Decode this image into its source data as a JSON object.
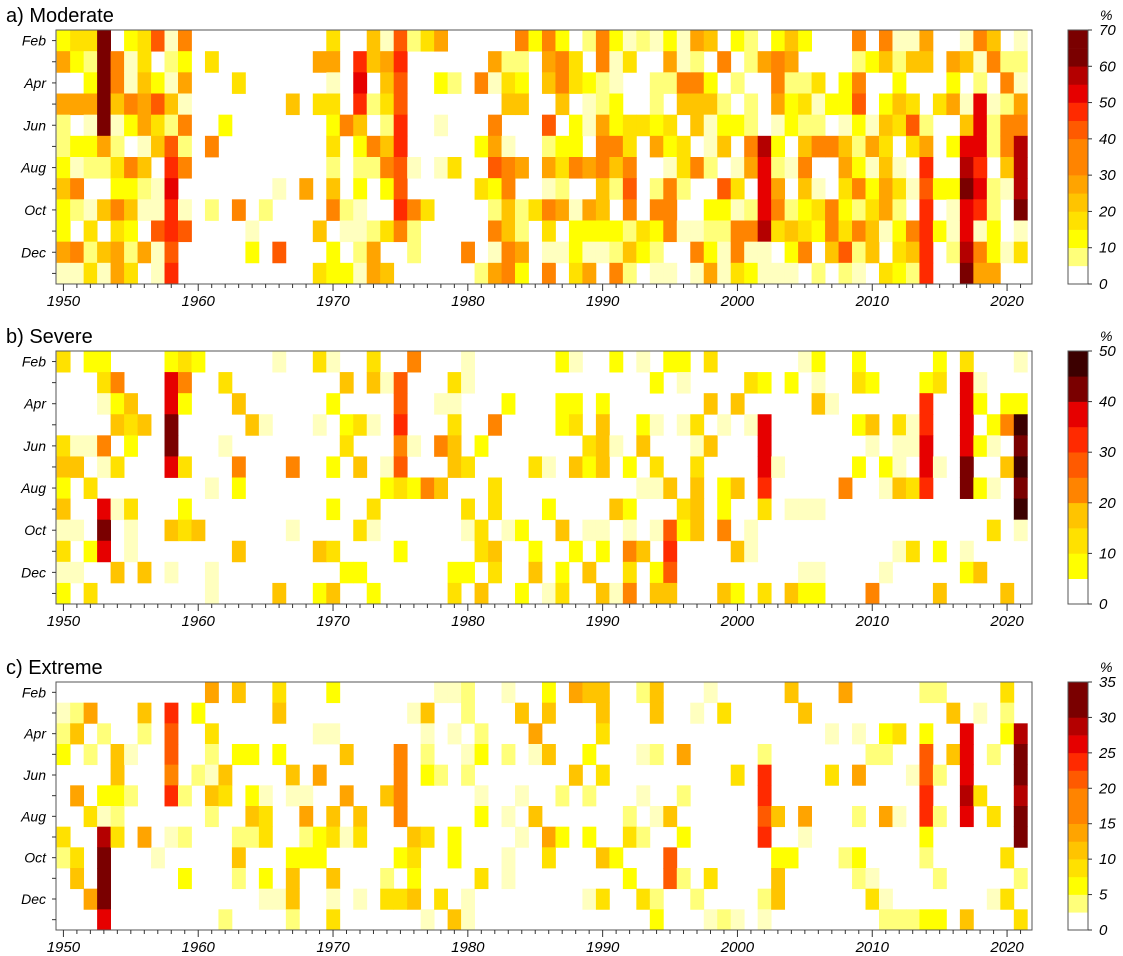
{
  "palette": [
    "#ffffff",
    "#ffffbf",
    "#ffff7a",
    "#ffff00",
    "#ffe100",
    "#ffc400",
    "#ffa400",
    "#ff8400",
    "#ff5a00",
    "#ff2a00",
    "#e60000",
    "#b40000",
    "#7a0000",
    "#3c0000"
  ],
  "chart_data": [
    {
      "type": "heatmap",
      "title": "a) Moderate",
      "x": {
        "start": 1950,
        "end": 2021,
        "tick_labels": [
          "1950",
          "1960",
          "1970",
          "1980",
          "1990",
          "2000",
          "2010",
          "2020"
        ],
        "tick_values": [
          1950,
          1960,
          1970,
          1980,
          1990,
          2000,
          2010,
          2020
        ]
      },
      "y": {
        "rows": 12,
        "labels": [
          "Feb",
          "Apr",
          "Jun",
          "Aug",
          "Oct",
          "Dec"
        ]
      },
      "colorbar": {
        "unit": "%",
        "max": 70,
        "levels": [
          0,
          5,
          10,
          15,
          20,
          25,
          30,
          35,
          40,
          45,
          50,
          55,
          60,
          65,
          70
        ],
        "labels": [
          "0",
          "10",
          "20",
          "30",
          "40",
          "50",
          "60",
          "70"
        ]
      },
      "seed": 11,
      "density": 0.82,
      "intensity": 0.55,
      "hotspots": [
        {
          "year": 1953,
          "months": [
            0,
            1,
            2,
            3,
            4
          ],
          "value": 62
        },
        {
          "year": 1958,
          "months": [
            5,
            6,
            7,
            8,
            9,
            10,
            11
          ],
          "value": 48
        },
        {
          "year": 1972,
          "months": [
            1,
            2,
            3
          ],
          "value": 50
        },
        {
          "year": 1975,
          "months": [
            0,
            1,
            2,
            3,
            4,
            5,
            6,
            7,
            8,
            9
          ],
          "value": 45
        },
        {
          "year": 2002,
          "months": [
            5,
            6,
            7,
            8,
            9
          ],
          "value": 55
        },
        {
          "year": 2014,
          "months": [
            6,
            7,
            8,
            9,
            10,
            11
          ],
          "value": 45
        },
        {
          "year": 2017,
          "months": [
            5,
            6,
            7,
            8,
            9,
            10,
            11
          ],
          "value": 58
        },
        {
          "year": 2018,
          "months": [
            3,
            4,
            5,
            6,
            7,
            8
          ],
          "value": 50
        },
        {
          "year": 2021,
          "months": [
            5,
            6,
            7,
            8
          ],
          "value": 60
        }
      ],
      "gaps": [
        {
          "from": 1960,
          "to": 1968,
          "fill": 0.15
        },
        {
          "from": 1976,
          "to": 1980,
          "fill": 0.55
        }
      ]
    },
    {
      "type": "heatmap",
      "title": "b) Severe",
      "x": {
        "start": 1950,
        "end": 2021,
        "tick_labels": [
          "1950",
          "1960",
          "1970",
          "1980",
          "1990",
          "2000",
          "2010",
          "2020"
        ],
        "tick_values": [
          1950,
          1960,
          1970,
          1980,
          1990,
          2000,
          2010,
          2020
        ]
      },
      "y": {
        "rows": 12,
        "labels": [
          "Feb",
          "Apr",
          "Jun",
          "Aug",
          "Oct",
          "Dec"
        ]
      },
      "colorbar": {
        "unit": "%",
        "max": 50,
        "levels": [
          0,
          5,
          10,
          15,
          20,
          25,
          30,
          35,
          40,
          45,
          50
        ],
        "labels": [
          "0",
          "10",
          "20",
          "30",
          "40",
          "50"
        ]
      },
      "seed": 23,
      "density": 0.42,
      "intensity": 0.4,
      "hotspots": [
        {
          "year": 1953,
          "months": [
            7,
            8,
            9
          ],
          "value": 40
        },
        {
          "year": 1958,
          "months": [
            1,
            2,
            3,
            4,
            5
          ],
          "value": 38
        },
        {
          "year": 1975,
          "months": [
            1,
            2,
            3,
            4,
            5
          ],
          "value": 28
        },
        {
          "year": 1995,
          "months": [
            8,
            9,
            10
          ],
          "value": 30
        },
        {
          "year": 2002,
          "months": [
            3,
            4,
            5,
            6
          ],
          "value": 35
        },
        {
          "year": 2014,
          "months": [
            2,
            3,
            4,
            5,
            6
          ],
          "value": 33
        },
        {
          "year": 2017,
          "months": [
            1,
            2,
            3,
            4,
            5,
            6
          ],
          "value": 40
        },
        {
          "year": 2021,
          "months": [
            3,
            4,
            5,
            6,
            7
          ],
          "value": 45
        }
      ],
      "gaps": [
        {
          "from": 1960,
          "to": 1968,
          "fill": 0.08
        }
      ]
    },
    {
      "type": "heatmap",
      "title": "c) Extreme",
      "x": {
        "start": 1950,
        "end": 2021,
        "tick_labels": [
          "1950",
          "1960",
          "1970",
          "1980",
          "1990",
          "2000",
          "2010",
          "2020"
        ],
        "tick_values": [
          1950,
          1960,
          1970,
          1980,
          1990,
          2000,
          2010,
          2020
        ]
      },
      "y": {
        "rows": 12,
        "labels": [
          "Feb",
          "Apr",
          "Jun",
          "Aug",
          "Oct",
          "Dec"
        ]
      },
      "colorbar": {
        "unit": "%",
        "max": 35,
        "levels": [
          0,
          2.5,
          5,
          7.5,
          10,
          12.5,
          15,
          17.5,
          20,
          22.5,
          25,
          27.5,
          30,
          32.5,
          35
        ],
        "labels": [
          "0",
          "5",
          "10",
          "15",
          "20",
          "25",
          "30",
          "35"
        ]
      },
      "seed": 37,
      "density": 0.3,
      "intensity": 0.35,
      "hotspots": [
        {
          "year": 1953,
          "months": [
            7,
            8,
            9,
            10,
            11
          ],
          "value": 30
        },
        {
          "year": 1958,
          "months": [
            1,
            2,
            3,
            4,
            5
          ],
          "value": 22
        },
        {
          "year": 1975,
          "months": [
            3,
            4,
            5,
            6
          ],
          "value": 17
        },
        {
          "year": 1995,
          "months": [
            8,
            9
          ],
          "value": 22
        },
        {
          "year": 2002,
          "months": [
            4,
            5,
            6,
            7
          ],
          "value": 22
        },
        {
          "year": 2014,
          "months": [
            3,
            4,
            5,
            6
          ],
          "value": 22
        },
        {
          "year": 2017,
          "months": [
            2,
            3,
            4,
            5,
            6
          ],
          "value": 27
        },
        {
          "year": 2021,
          "months": [
            2,
            3,
            4,
            5,
            6,
            7
          ],
          "value": 30
        }
      ],
      "gaps": [
        {
          "from": 1960,
          "to": 1998,
          "fill": 0.35
        }
      ]
    }
  ]
}
